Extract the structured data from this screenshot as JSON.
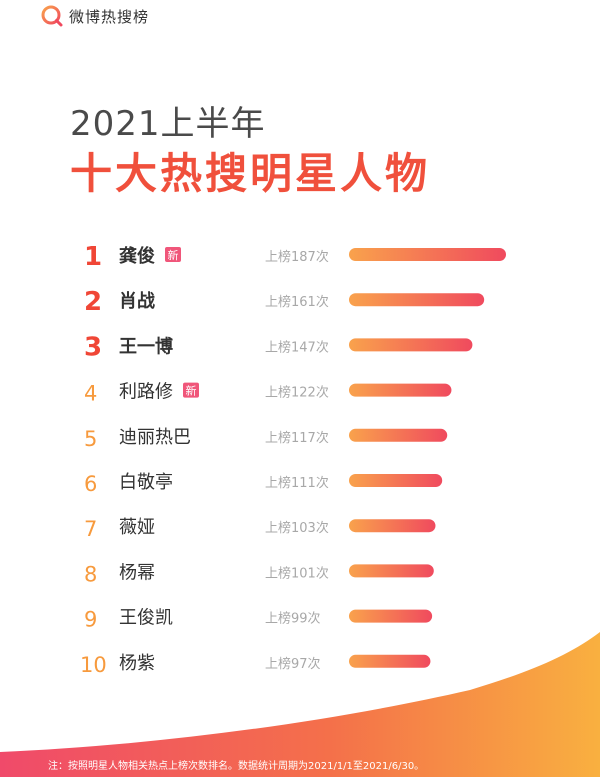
{
  "header": {
    "logo_text": "微博热搜榜",
    "logo_icon": "weibo-search-icon"
  },
  "title": {
    "year_line": "2021上半年",
    "main_line": "十大热搜明星人物"
  },
  "colors": {
    "accent_red": "#f0503c",
    "bar_start": "#f9a24c",
    "bar_end": "#f04a5e",
    "rank_red": "#f04636",
    "rank_orange": "#f79a3d",
    "badge": "#f0567a"
  },
  "chart_data": {
    "type": "bar",
    "orientation": "horizontal",
    "value_prefix": "上榜",
    "value_suffix": "次",
    "categories": [
      "龚俊",
      "肖战",
      "王一博",
      "利路修",
      "迪丽热巴",
      "白敬亭",
      "薇娅",
      "杨幂",
      "王俊凯",
      "杨紫"
    ],
    "values": [
      187,
      161,
      147,
      122,
      117,
      111,
      103,
      101,
      99,
      97
    ],
    "ranks": [
      "1",
      "2",
      "3",
      "4",
      "5",
      "6",
      "7",
      "8",
      "9",
      "10"
    ],
    "badges": [
      "新",
      "",
      "",
      "新",
      "",
      "",
      "",
      "",
      "",
      ""
    ]
  },
  "footer": {
    "note": "注：按照明星人物相关热点上榜次数排名。数据统计周期为2021/1/1至2021/6/30。"
  }
}
